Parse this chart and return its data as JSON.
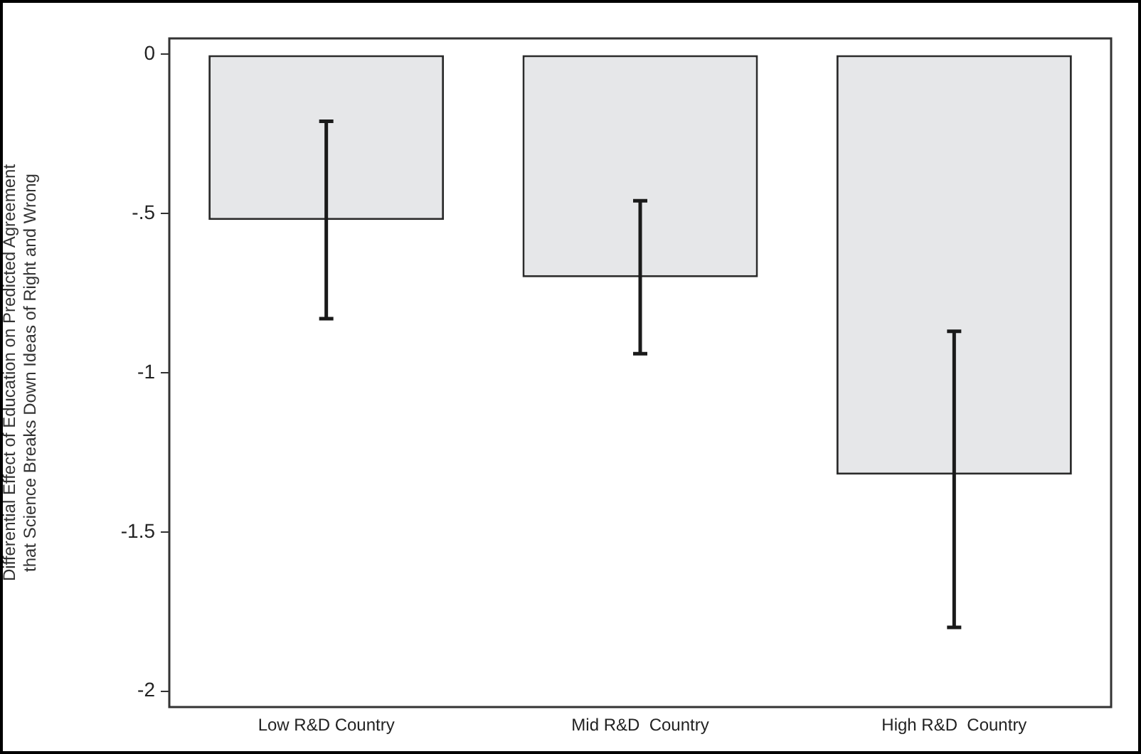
{
  "chart_data": {
    "type": "bar",
    "ylabel": "Differential Effect of Education on Predicted Agreement\nthat Science Breaks Down Ideas of Right and Wrong",
    "categories": [
      "Low R&D Country",
      "Mid R&D  Country",
      "High R&D  Country"
    ],
    "values": [
      -0.52,
      -0.7,
      -1.32
    ],
    "errors": [
      [
        -0.83,
        -0.21
      ],
      [
        -0.94,
        -0.46
      ],
      [
        -1.8,
        -0.87
      ]
    ],
    "color": "#e6e7e9",
    "ylim": [
      -2.05,
      0.05
    ],
    "yticks": [
      {
        "value": 0,
        "label": "0"
      },
      {
        "value": -0.5,
        "label": "-.5"
      },
      {
        "value": -1,
        "label": "-1"
      },
      {
        "value": -1.5,
        "label": "-1.5"
      },
      {
        "value": -2,
        "label": "-2"
      }
    ],
    "grid": false,
    "legend": false
  }
}
